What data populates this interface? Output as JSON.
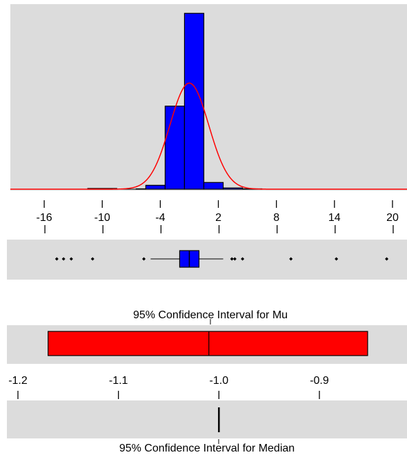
{
  "chart_data": [
    {
      "type": "bar",
      "subtype": "histogram-with-normal-curve",
      "xlim": [
        -19.5,
        21.5
      ],
      "ylim": [
        0,
        1000
      ],
      "bin_edges": [
        -11.5,
        -8.5,
        -6.5,
        -5.5,
        -3.5,
        -1.5,
        0.5,
        2.5,
        4.5,
        6.5
      ],
      "bin_counts": [
        4,
        0,
        2,
        22,
        470,
        995,
        38,
        7,
        2
      ],
      "bar_color": "#0000ff",
      "curve_color": "#ff0000",
      "normal_curve": {
        "mean": -1.0,
        "sd": 2.0,
        "peak": 600
      },
      "xticks": [
        -16,
        -10,
        -4,
        2,
        8,
        14,
        20
      ],
      "xtick_labels": [
        "-16",
        "-10",
        "-4",
        "2",
        "8",
        "14",
        "20"
      ],
      "grid": false
    },
    {
      "type": "boxplot",
      "xlim": [
        -19.5,
        21.5
      ],
      "whisker_low": -5.0,
      "q1": -2.0,
      "median": -1.0,
      "q3": 0.0,
      "whisker_high": 2.5,
      "outliers": [
        -14.7,
        -14.0,
        -13.2,
        -11.0,
        -5.7,
        3.4,
        3.7,
        4.5,
        9.5,
        14.2,
        19.4
      ],
      "box_color": "#0000ff"
    },
    {
      "type": "interval",
      "title": "95% Confidence Interval for Mu",
      "xlim": [
        -1.22,
        -0.84
      ],
      "low": -1.17,
      "center": -1.01,
      "high": -0.852,
      "fill_color": "#ff0000",
      "xticks": [
        -1.2,
        -1.1,
        -1.0,
        -0.9
      ],
      "xtick_labels": [
        "-1.2",
        "-1.1",
        "-1.0",
        "-0.9"
      ]
    },
    {
      "type": "interval",
      "title": "95% Confidence Interval for Median",
      "xlim": [
        -1.22,
        -0.84
      ],
      "low": -1.0,
      "high": -1.0,
      "color": "#000000"
    }
  ],
  "panel_bg": "#dcdcdc"
}
